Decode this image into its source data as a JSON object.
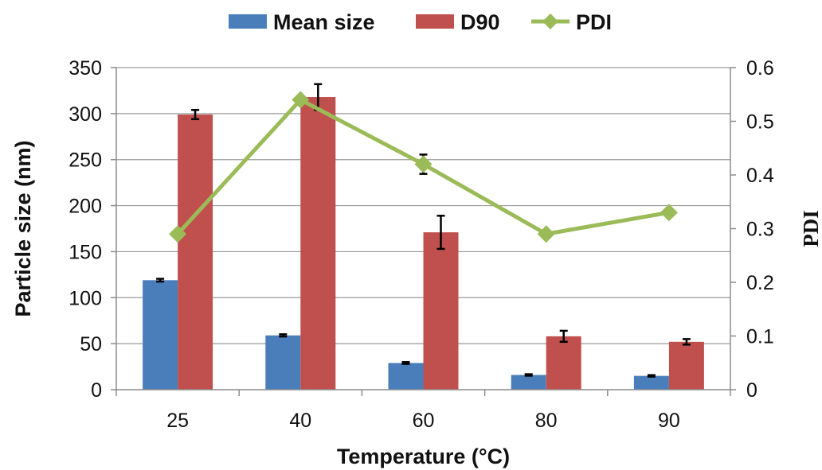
{
  "chart_data": {
    "type": "bar",
    "categories": [
      "25",
      "40",
      "60",
      "80",
      "90"
    ],
    "xlabel": "Temperature (°C)",
    "ylabel": "Particle size (nm)",
    "y2label": "PDI",
    "ylim": [
      0,
      350
    ],
    "y2lim": [
      0,
      0.6
    ],
    "yticks": [
      "0",
      "50",
      "100",
      "150",
      "200",
      "250",
      "300",
      "350"
    ],
    "y2ticks": [
      "0",
      "0.1",
      "0.2",
      "0.3",
      "0.4",
      "0.5",
      "0.6"
    ],
    "grid": true,
    "legend_position": "top",
    "series": [
      {
        "name": "Mean size",
        "kind": "bar",
        "axis": "left",
        "color": "#4a7ebb",
        "values": [
          119,
          59,
          29,
          16,
          15
        ],
        "errors": [
          1.5,
          1.2,
          1,
          0.8,
          0.8
        ]
      },
      {
        "name": "D90",
        "kind": "bar",
        "axis": "left",
        "color": "#c0504d",
        "values": [
          299,
          318,
          171,
          58,
          52
        ],
        "errors": [
          5,
          14,
          18,
          6,
          3
        ]
      },
      {
        "name": "PDI",
        "kind": "line",
        "axis": "right",
        "color": "#9bbb59",
        "values": [
          0.29,
          0.54,
          0.42,
          0.29,
          0.33
        ],
        "errors": [
          0,
          0,
          0.018,
          0,
          0
        ]
      }
    ]
  }
}
